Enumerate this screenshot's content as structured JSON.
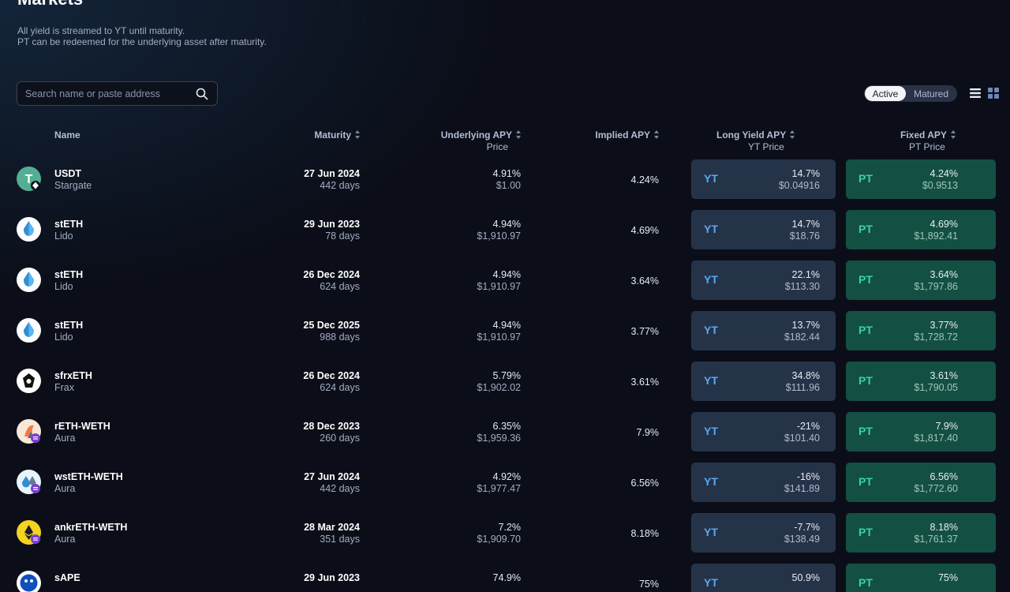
{
  "page": {
    "title": "Markets",
    "subtitle_line1": "All yield is streamed to YT until maturity.",
    "subtitle_line2": "PT can be redeemed for the underlying asset after maturity."
  },
  "search": {
    "placeholder": "Search name or paste address",
    "value": ""
  },
  "filter": {
    "active_label": "Active",
    "matured_label": "Matured",
    "selected": "Active"
  },
  "columns": {
    "name": "Name",
    "maturity": "Maturity",
    "underlying": "Underlying APY",
    "underlying_sub": "Price",
    "implied": "Implied APY",
    "long_yield": "Long Yield APY",
    "long_yield_sub": "YT Price",
    "fixed": "Fixed APY",
    "fixed_sub": "PT Price"
  },
  "labels": {
    "yt": "YT",
    "pt": "PT"
  },
  "markets": [
    {
      "name": "USDT",
      "protocol": "Stargate",
      "icon": "usdt-icon",
      "maturity": "27 Jun 2024",
      "days": "442 days",
      "underlying_apy": "4.91%",
      "price": "$1.00",
      "implied_apy": "4.24%",
      "yt_apy": "14.7%",
      "yt_price": "$0.04916",
      "pt_apy": "4.24%",
      "pt_price": "$0.9513"
    },
    {
      "name": "stETH",
      "protocol": "Lido",
      "icon": "lido-icon",
      "maturity": "29 Jun 2023",
      "days": "78 days",
      "underlying_apy": "4.94%",
      "price": "$1,910.97",
      "implied_apy": "4.69%",
      "yt_apy": "14.7%",
      "yt_price": "$18.76",
      "pt_apy": "4.69%",
      "pt_price": "$1,892.41"
    },
    {
      "name": "stETH",
      "protocol": "Lido",
      "icon": "lido-icon",
      "maturity": "26 Dec 2024",
      "days": "624 days",
      "underlying_apy": "4.94%",
      "price": "$1,910.97",
      "implied_apy": "3.64%",
      "yt_apy": "22.1%",
      "yt_price": "$113.30",
      "pt_apy": "3.64%",
      "pt_price": "$1,797.86"
    },
    {
      "name": "stETH",
      "protocol": "Lido",
      "icon": "lido-icon",
      "maturity": "25 Dec 2025",
      "days": "988 days",
      "underlying_apy": "4.94%",
      "price": "$1,910.97",
      "implied_apy": "3.77%",
      "yt_apy": "13.7%",
      "yt_price": "$182.44",
      "pt_apy": "3.77%",
      "pt_price": "$1,728.72"
    },
    {
      "name": "sfrxETH",
      "protocol": "Frax",
      "icon": "frax-icon",
      "maturity": "26 Dec 2024",
      "days": "624 days",
      "underlying_apy": "5.79%",
      "price": "$1,902.02",
      "implied_apy": "3.61%",
      "yt_apy": "34.8%",
      "yt_price": "$111.96",
      "pt_apy": "3.61%",
      "pt_price": "$1,790.05"
    },
    {
      "name": "rETH-WETH",
      "protocol": "Aura",
      "icon": "reth-icon",
      "maturity": "28 Dec 2023",
      "days": "260 days",
      "underlying_apy": "6.35%",
      "price": "$1,959.36",
      "implied_apy": "7.9%",
      "yt_apy": "-21%",
      "yt_price": "$101.40",
      "pt_apy": "7.9%",
      "pt_price": "$1,817.40"
    },
    {
      "name": "wstETH-WETH",
      "protocol": "Aura",
      "icon": "wsteth-icon",
      "maturity": "27 Jun 2024",
      "days": "442 days",
      "underlying_apy": "4.92%",
      "price": "$1,977.47",
      "implied_apy": "6.56%",
      "yt_apy": "-16%",
      "yt_price": "$141.89",
      "pt_apy": "6.56%",
      "pt_price": "$1,772.60"
    },
    {
      "name": "ankrETH-WETH",
      "protocol": "Aura",
      "icon": "ankreth-icon",
      "maturity": "28 Mar 2024",
      "days": "351 days",
      "underlying_apy": "7.2%",
      "price": "$1,909.70",
      "implied_apy": "8.18%",
      "yt_apy": "-7.7%",
      "yt_price": "$138.49",
      "pt_apy": "8.18%",
      "pt_price": "$1,761.37"
    },
    {
      "name": "sAPE",
      "protocol": "",
      "icon": "sape-icon",
      "maturity": "29 Jun 2023",
      "days": "",
      "underlying_apy": "74.9%",
      "price": "",
      "implied_apy": "75%",
      "yt_apy": "50.9%",
      "yt_price": "",
      "pt_apy": "75%",
      "pt_price": ""
    }
  ]
}
